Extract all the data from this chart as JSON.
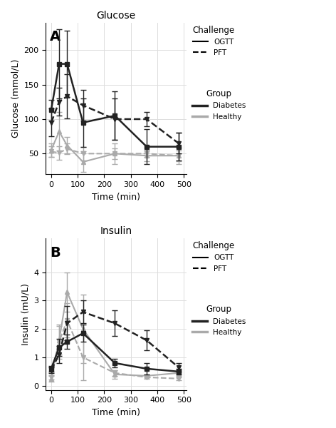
{
  "glucose": {
    "title": "Glucose",
    "ylabel": "Glucose (mmol/L)",
    "xlabel": "Time (min)",
    "xlim": [
      -20,
      510
    ],
    "ylim": [
      20,
      240
    ],
    "yticks": [
      50,
      100,
      150,
      200
    ],
    "xticks": [
      0,
      100,
      200,
      300,
      400,
      500
    ],
    "time_points": [
      0,
      30,
      60,
      120,
      240,
      360,
      480
    ],
    "diab_ogtt_mean": [
      113,
      180,
      180,
      95,
      105,
      60,
      60
    ],
    "diab_ogtt_err": [
      15,
      50,
      48,
      35,
      35,
      25,
      20
    ],
    "diab_pft_mean": [
      95,
      125,
      133,
      120,
      100,
      100,
      65
    ],
    "diab_pft_err": [
      20,
      20,
      32,
      22,
      30,
      10,
      15
    ],
    "heal_ogtt_mean": [
      55,
      82,
      62,
      38,
      50,
      47,
      47
    ],
    "heal_ogtt_err": [
      10,
      28,
      12,
      15,
      15,
      8,
      12
    ],
    "heal_pft_mean": [
      53,
      51,
      57,
      50,
      50,
      50,
      47
    ],
    "heal_pft_err": [
      8,
      10,
      8,
      10,
      8,
      5,
      8
    ],
    "panel_label": "A"
  },
  "insulin": {
    "title": "Insulin",
    "ylabel": "Insulin (mU/L)",
    "xlabel": "Time (min)",
    "xlim": [
      -20,
      510
    ],
    "ylim": [
      -0.15,
      5.2
    ],
    "yticks": [
      0,
      1,
      2,
      3,
      4
    ],
    "xticks": [
      0,
      100,
      200,
      300,
      400,
      500
    ],
    "time_points": [
      0,
      30,
      60,
      120,
      240,
      360,
      480
    ],
    "diab_ogtt_mean": [
      0.6,
      1.35,
      1.55,
      1.85,
      0.8,
      0.6,
      0.5
    ],
    "diab_ogtt_err": [
      0.1,
      0.3,
      0.25,
      0.3,
      0.15,
      0.2,
      0.1
    ],
    "diab_pft_mean": [
      0.55,
      1.1,
      2.2,
      2.6,
      2.2,
      1.6,
      0.65
    ],
    "diab_pft_err": [
      0.1,
      0.3,
      0.6,
      0.4,
      0.45,
      0.35,
      0.15
    ],
    "heal_ogtt_mean": [
      0.25,
      1.6,
      3.3,
      2.0,
      0.4,
      0.35,
      0.45
    ],
    "heal_ogtt_err": [
      0.1,
      0.5,
      0.7,
      1.2,
      0.15,
      0.05,
      0.1
    ],
    "heal_pft_mean": [
      0.3,
      1.55,
      2.3,
      1.0,
      0.45,
      0.3,
      0.25
    ],
    "heal_pft_err": [
      0.08,
      0.6,
      0.6,
      0.8,
      0.1,
      0.05,
      0.05
    ],
    "panel_label": "B"
  },
  "color_diabetes": "#222222",
  "color_healthy": "#aaaaaa",
  "bg_color": "#ffffff",
  "grid_color": "#dddddd"
}
